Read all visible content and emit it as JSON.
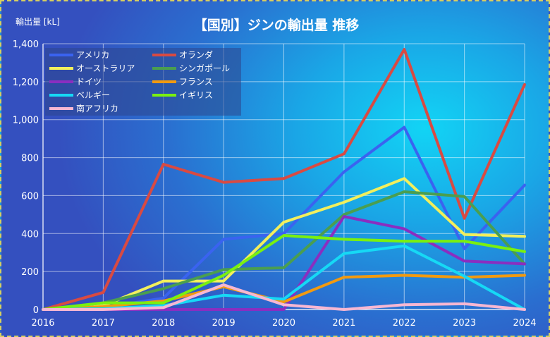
{
  "chart_data": {
    "type": "line",
    "title": "【国別】ジンの輸出量 推移",
    "ylabel": "輸出量 [kL]",
    "xlabel": "",
    "x": [
      "2016",
      "2017",
      "2018",
      "2019",
      "2020",
      "2021",
      "2022",
      "2023",
      "2024"
    ],
    "ylim": [
      0,
      1400
    ],
    "yticks": [
      "0",
      "200",
      "400",
      "600",
      "800",
      "1,000",
      "1,200",
      "1,400"
    ],
    "ytick_values": [
      0,
      200,
      400,
      600,
      800,
      1000,
      1200,
      1400
    ],
    "grid": true,
    "legend_position": "top-left",
    "series": [
      {
        "name": "アメリカ",
        "color": "#3a63f0",
        "values": [
          0,
          10,
          60,
          370,
          400,
          725,
          960,
          320,
          655
        ]
      },
      {
        "name": "オランダ",
        "color": "#d94a42",
        "values": [
          0,
          90,
          765,
          670,
          690,
          820,
          1370,
          480,
          1185
        ]
      },
      {
        "name": "オーストラリア",
        "color": "#f2ef5c",
        "values": [
          0,
          20,
          150,
          150,
          460,
          565,
          690,
          395,
          385
        ]
      },
      {
        "name": "シンガポール",
        "color": "#4a9e50",
        "values": [
          0,
          35,
          110,
          210,
          220,
          500,
          620,
          595,
          240
        ]
      },
      {
        "name": "ドイツ",
        "color": "#8a2ec0",
        "values": [
          0,
          0,
          0,
          0,
          0,
          490,
          425,
          255,
          240
        ]
      },
      {
        "name": "フランス",
        "color": "#f29a10",
        "values": [
          0,
          15,
          45,
          120,
          40,
          170,
          180,
          170,
          180
        ]
      },
      {
        "name": "ベルギー",
        "color": "#16d9f5",
        "values": [
          0,
          5,
          20,
          75,
          55,
          295,
          335,
          175,
          0
        ]
      },
      {
        "name": "イギリス",
        "color": "#7af010",
        "values": [
          0,
          35,
          35,
          180,
          390,
          370,
          360,
          360,
          305
        ]
      },
      {
        "name": "南アフリカ",
        "color": "#f7b7d2",
        "values": [
          0,
          0,
          10,
          130,
          25,
          0,
          25,
          30,
          0
        ]
      }
    ]
  }
}
